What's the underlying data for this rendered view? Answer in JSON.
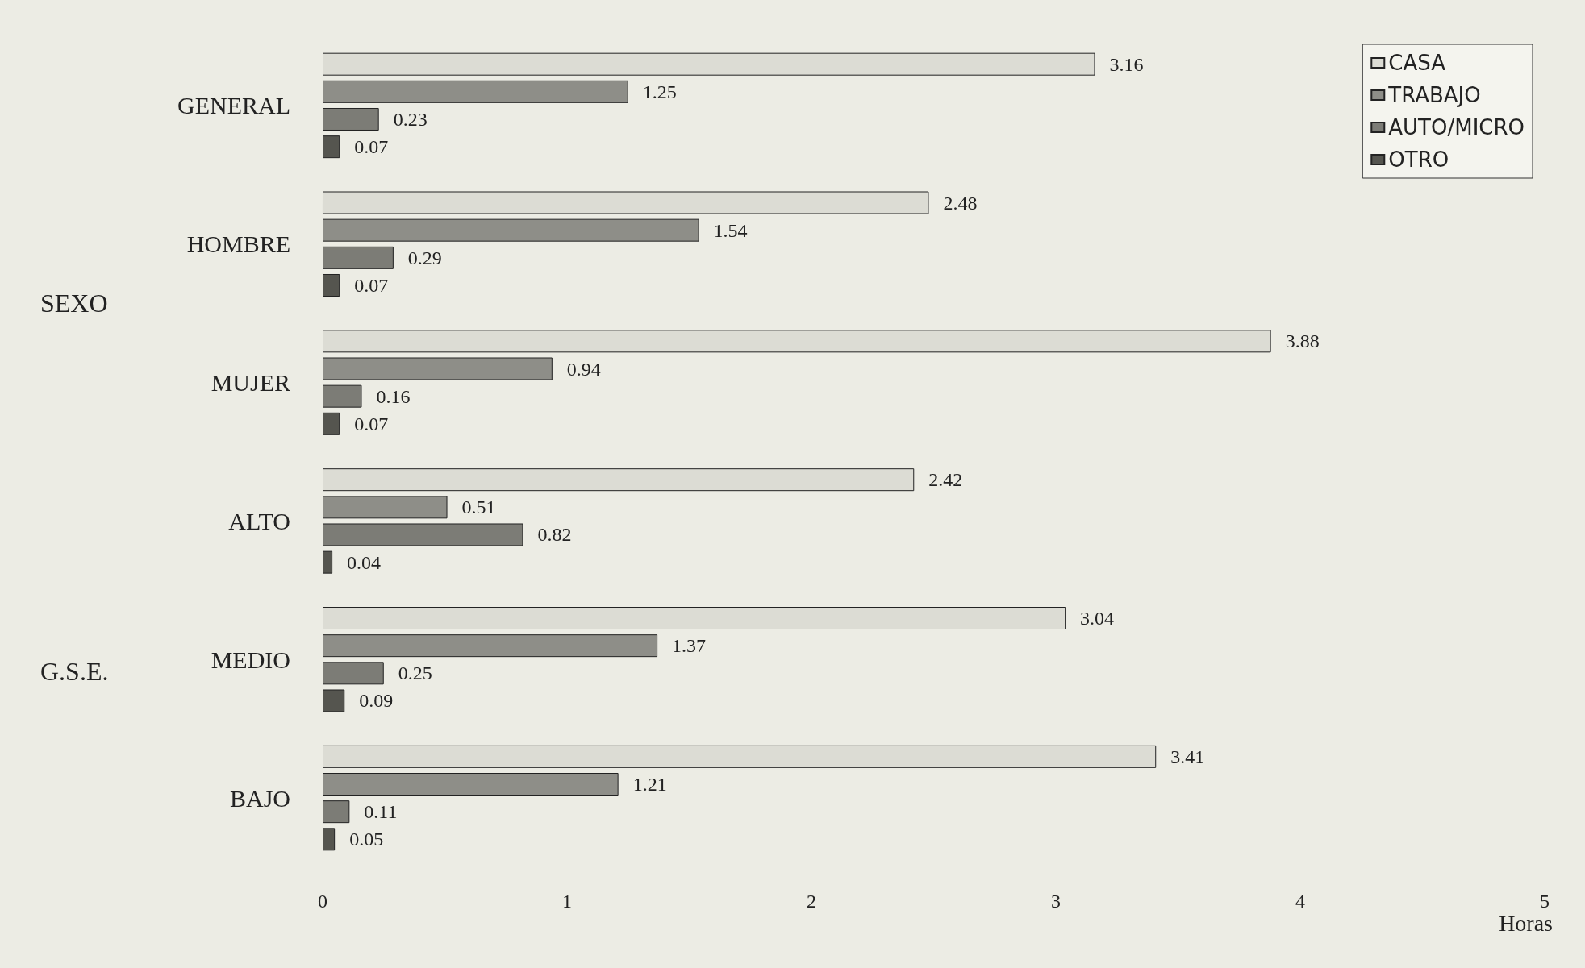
{
  "chart_data": {
    "type": "bar",
    "orientation": "horizontal",
    "categories": [
      "GENERAL",
      "HOMBRE",
      "MUJER",
      "ALTO",
      "MEDIO",
      "BAJO"
    ],
    "series": [
      {
        "name": "CASA",
        "color": "#dcdcd4",
        "values": [
          3.16,
          2.48,
          3.88,
          2.42,
          3.04,
          3.41
        ]
      },
      {
        "name": "TRABAJO",
        "color": "#8e8e88",
        "values": [
          1.25,
          1.54,
          0.94,
          0.51,
          1.37,
          1.21
        ]
      },
      {
        "name": "AUTO/MICRO",
        "color": "#7c7c76",
        "values": [
          0.23,
          0.29,
          0.16,
          0.82,
          0.25,
          0.11
        ]
      },
      {
        "name": "OTRO",
        "color": "#55554f",
        "values": [
          0.07,
          0.07,
          0.07,
          0.04,
          0.09,
          0.05
        ]
      }
    ],
    "xlim": [
      0,
      5
    ],
    "xticks": [
      0,
      1,
      2,
      3,
      4,
      5
    ],
    "xlabel": "Horas",
    "data_labels": true,
    "legend": "top right",
    "grid": false,
    "annotations": [
      "SEXO",
      "G.S.E."
    ]
  }
}
